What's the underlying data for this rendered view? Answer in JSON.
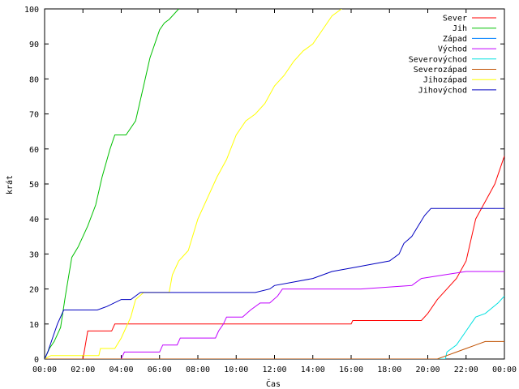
{
  "chart_data": {
    "type": "line",
    "title": "",
    "xlabel": "Čas",
    "ylabel": "krát",
    "xlim": [
      "00:00",
      "24:00"
    ],
    "ylim": [
      0,
      100
    ],
    "x_ticks": [
      "00:00",
      "02:00",
      "04:00",
      "06:00",
      "08:00",
      "10:00",
      "12:00",
      "14:00",
      "16:00",
      "18:00",
      "20:00",
      "22:00",
      "00:00"
    ],
    "y_ticks": [
      0,
      10,
      20,
      30,
      40,
      50,
      60,
      70,
      80,
      90,
      100
    ],
    "grid": false,
    "legend_position": "top-right",
    "series": [
      {
        "name": "Sever",
        "color": "#ff0000",
        "points": [
          [
            "00:00",
            0
          ],
          [
            "02:00",
            0
          ],
          [
            "02:15",
            8
          ],
          [
            "03:30",
            8
          ],
          [
            "03:40",
            10
          ],
          [
            "10:00",
            10
          ],
          [
            "16:00",
            10
          ],
          [
            "16:05",
            11
          ],
          [
            "19:40",
            11
          ],
          [
            "20:00",
            13
          ],
          [
            "20:30",
            17
          ],
          [
            "21:00",
            20
          ],
          [
            "21:30",
            23
          ],
          [
            "22:00",
            28
          ],
          [
            "22:30",
            40
          ],
          [
            "23:00",
            45
          ],
          [
            "23:30",
            50
          ],
          [
            "24:00",
            58
          ]
        ]
      },
      {
        "name": "Jih",
        "color": "#00c000",
        "points": [
          [
            "00:00",
            0
          ],
          [
            "00:15",
            3
          ],
          [
            "00:30",
            5
          ],
          [
            "00:50",
            9
          ],
          [
            "01:05",
            18
          ],
          [
            "01:25",
            29
          ],
          [
            "01:45",
            32
          ],
          [
            "02:15",
            38
          ],
          [
            "02:40",
            44
          ],
          [
            "03:00",
            52
          ],
          [
            "03:25",
            60
          ],
          [
            "03:40",
            64
          ],
          [
            "04:15",
            64
          ],
          [
            "04:45",
            68
          ],
          [
            "05:10",
            78
          ],
          [
            "05:30",
            86
          ],
          [
            "06:00",
            94
          ],
          [
            "06:15",
            96
          ],
          [
            "06:30",
            97
          ],
          [
            "07:00",
            100
          ]
        ]
      },
      {
        "name": "Západ",
        "color": "#0080ff",
        "points": []
      },
      {
        "name": "Východ",
        "color": "#c000ff",
        "points": [
          [
            "00:00",
            0
          ],
          [
            "04:00",
            0
          ],
          [
            "04:10",
            2
          ],
          [
            "06:00",
            2
          ],
          [
            "06:10",
            4
          ],
          [
            "06:55",
            4
          ],
          [
            "07:05",
            6
          ],
          [
            "08:55",
            6
          ],
          [
            "09:05",
            8
          ],
          [
            "09:20",
            10
          ],
          [
            "09:30",
            12
          ],
          [
            "10:00",
            12
          ],
          [
            "10:20",
            12
          ],
          [
            "10:45",
            14
          ],
          [
            "11:15",
            16
          ],
          [
            "11:45",
            16
          ],
          [
            "12:10",
            18
          ],
          [
            "12:25",
            20
          ],
          [
            "16:30",
            20
          ],
          [
            "19:10",
            21
          ],
          [
            "19:40",
            23
          ],
          [
            "20:50",
            24
          ],
          [
            "22:00",
            25
          ],
          [
            "24:00",
            25
          ]
        ]
      },
      {
        "name": "Severovýchod",
        "color": "#00e0e0",
        "points": [
          [
            "00:00",
            0
          ],
          [
            "20:55",
            0
          ],
          [
            "21:00",
            2
          ],
          [
            "21:30",
            4
          ],
          [
            "22:00",
            8
          ],
          [
            "22:30",
            12
          ],
          [
            "23:00",
            13
          ],
          [
            "23:40",
            16
          ],
          [
            "24:00",
            18
          ]
        ]
      },
      {
        "name": "Severozápad",
        "color": "#c05000",
        "points": [
          [
            "00:00",
            0
          ],
          [
            "20:30",
            0
          ],
          [
            "21:00",
            1
          ],
          [
            "21:30",
            2
          ],
          [
            "22:00",
            3
          ],
          [
            "22:30",
            4
          ],
          [
            "23:00",
            5
          ],
          [
            "24:00",
            5
          ]
        ]
      },
      {
        "name": "Jihozápad",
        "color": "#ffff00",
        "points": [
          [
            "00:00",
            0
          ],
          [
            "00:20",
            1
          ],
          [
            "02:50",
            1
          ],
          [
            "02:55",
            3
          ],
          [
            "03:40",
            3
          ],
          [
            "04:00",
            6
          ],
          [
            "04:30",
            12
          ],
          [
            "04:45",
            17
          ],
          [
            "05:10",
            19
          ],
          [
            "06:30",
            19
          ],
          [
            "06:40",
            24
          ],
          [
            "07:00",
            28
          ],
          [
            "07:30",
            31
          ],
          [
            "08:00",
            40
          ],
          [
            "08:30",
            46
          ],
          [
            "09:00",
            52
          ],
          [
            "09:30",
            57
          ],
          [
            "10:00",
            64
          ],
          [
            "10:30",
            68
          ],
          [
            "11:00",
            70
          ],
          [
            "11:30",
            73
          ],
          [
            "12:00",
            78
          ],
          [
            "12:30",
            81
          ],
          [
            "13:00",
            85
          ],
          [
            "13:30",
            88
          ],
          [
            "14:00",
            90
          ],
          [
            "14:30",
            94
          ],
          [
            "15:00",
            98
          ],
          [
            "15:30",
            100
          ]
        ]
      },
      {
        "name": "Jihovýchod",
        "color": "#0000c0",
        "points": [
          [
            "00:00",
            0
          ],
          [
            "00:10",
            2
          ],
          [
            "00:25",
            6
          ],
          [
            "00:40",
            10
          ],
          [
            "01:00",
            14
          ],
          [
            "02:45",
            14
          ],
          [
            "03:15",
            15
          ],
          [
            "04:00",
            17
          ],
          [
            "04:30",
            17
          ],
          [
            "05:00",
            19
          ],
          [
            "10:00",
            19
          ],
          [
            "11:00",
            19
          ],
          [
            "11:45",
            20
          ],
          [
            "12:00",
            21
          ],
          [
            "13:00",
            22
          ],
          [
            "14:00",
            23
          ],
          [
            "15:00",
            25
          ],
          [
            "16:00",
            26
          ],
          [
            "17:00",
            27
          ],
          [
            "18:00",
            28
          ],
          [
            "18:30",
            30
          ],
          [
            "18:45",
            33
          ],
          [
            "19:10",
            35
          ],
          [
            "19:30",
            38
          ],
          [
            "19:50",
            41
          ],
          [
            "20:10",
            43
          ],
          [
            "24:00",
            43
          ]
        ]
      }
    ]
  }
}
